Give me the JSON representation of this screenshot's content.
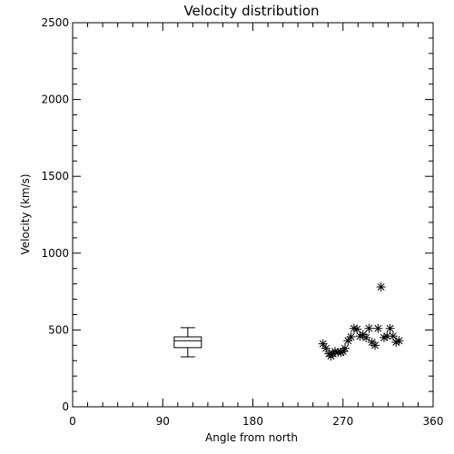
{
  "chart_data": {
    "type": "scatter",
    "title": "Velocity distribution",
    "xlabel": "Angle from north",
    "ylabel": "Velocity (km/s)",
    "xlim": [
      0,
      360
    ],
    "ylim": [
      0,
      2500
    ],
    "xticks": [
      0,
      90,
      180,
      270,
      360
    ],
    "yticks": [
      0,
      500,
      1000,
      1500,
      2000,
      2500
    ],
    "grid": false,
    "legend": "none",
    "boxplot": {
      "x": 115,
      "min": 325,
      "q1": 385,
      "median": 430,
      "q3": 455,
      "max": 515
    },
    "series": [
      {
        "marker": "asterisk",
        "color": "#000000",
        "x": [
          250,
          253,
          256,
          258,
          260,
          262,
          265,
          268,
          270,
          272,
          275,
          278,
          281,
          284,
          287,
          290,
          293,
          296,
          299,
          302,
          305,
          308,
          311,
          314,
          317,
          320,
          323,
          326
        ],
        "y": [
          410,
          380,
          345,
          330,
          345,
          360,
          355,
          355,
          360,
          380,
          430,
          455,
          510,
          505,
          460,
          470,
          450,
          510,
          420,
          400,
          510,
          780,
          450,
          460,
          510,
          460,
          420,
          430
        ]
      }
    ]
  }
}
